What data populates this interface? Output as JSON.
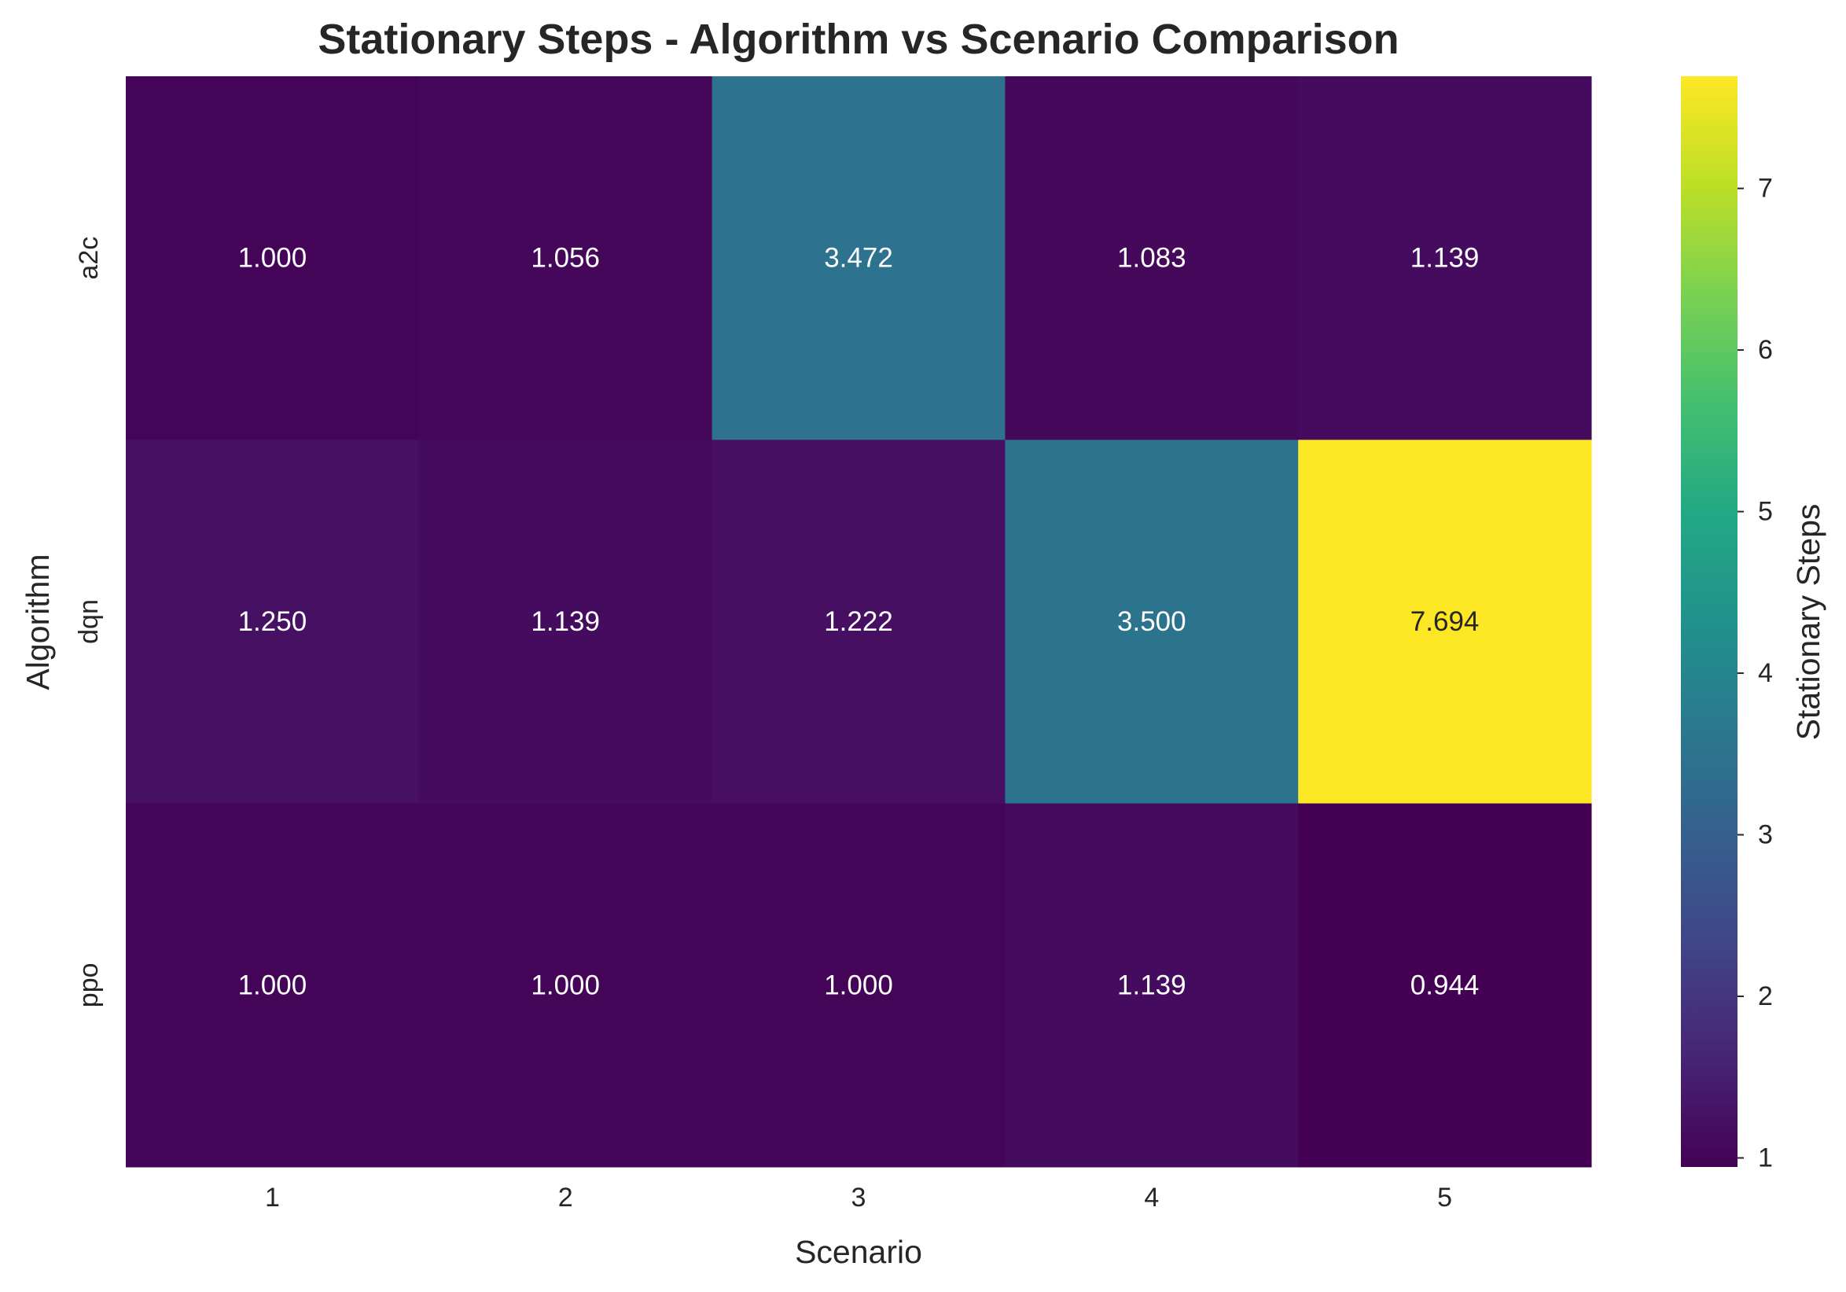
{
  "chart_data": {
    "type": "heatmap",
    "title": "Stationary Steps - Algorithm vs Scenario Comparison",
    "xlabel": "Scenario",
    "ylabel": "Algorithm",
    "x_categories": [
      "1",
      "2",
      "3",
      "4",
      "5"
    ],
    "y_categories": [
      "a2c",
      "dqn",
      "ppo"
    ],
    "values": [
      [
        1.0,
        1.056,
        3.472,
        1.083,
        1.139
      ],
      [
        1.25,
        1.139,
        1.222,
        3.5,
        7.694
      ],
      [
        1.0,
        1.0,
        1.0,
        1.139,
        0.944
      ]
    ],
    "cell_labels": [
      [
        "1.000",
        "1.056",
        "3.472",
        "1.083",
        "1.139"
      ],
      [
        "1.250",
        "1.139",
        "1.222",
        "3.500",
        "7.694"
      ],
      [
        "1.000",
        "1.000",
        "1.000",
        "1.139",
        "0.944"
      ]
    ],
    "colormap": "viridis",
    "colorbar": {
      "label": "Stationary Steps",
      "range": [
        0.944,
        7.694
      ],
      "ticks": [
        "1",
        "2",
        "3",
        "4",
        "5",
        "6",
        "7"
      ]
    },
    "grid": false,
    "legend": "colorbar-right"
  }
}
